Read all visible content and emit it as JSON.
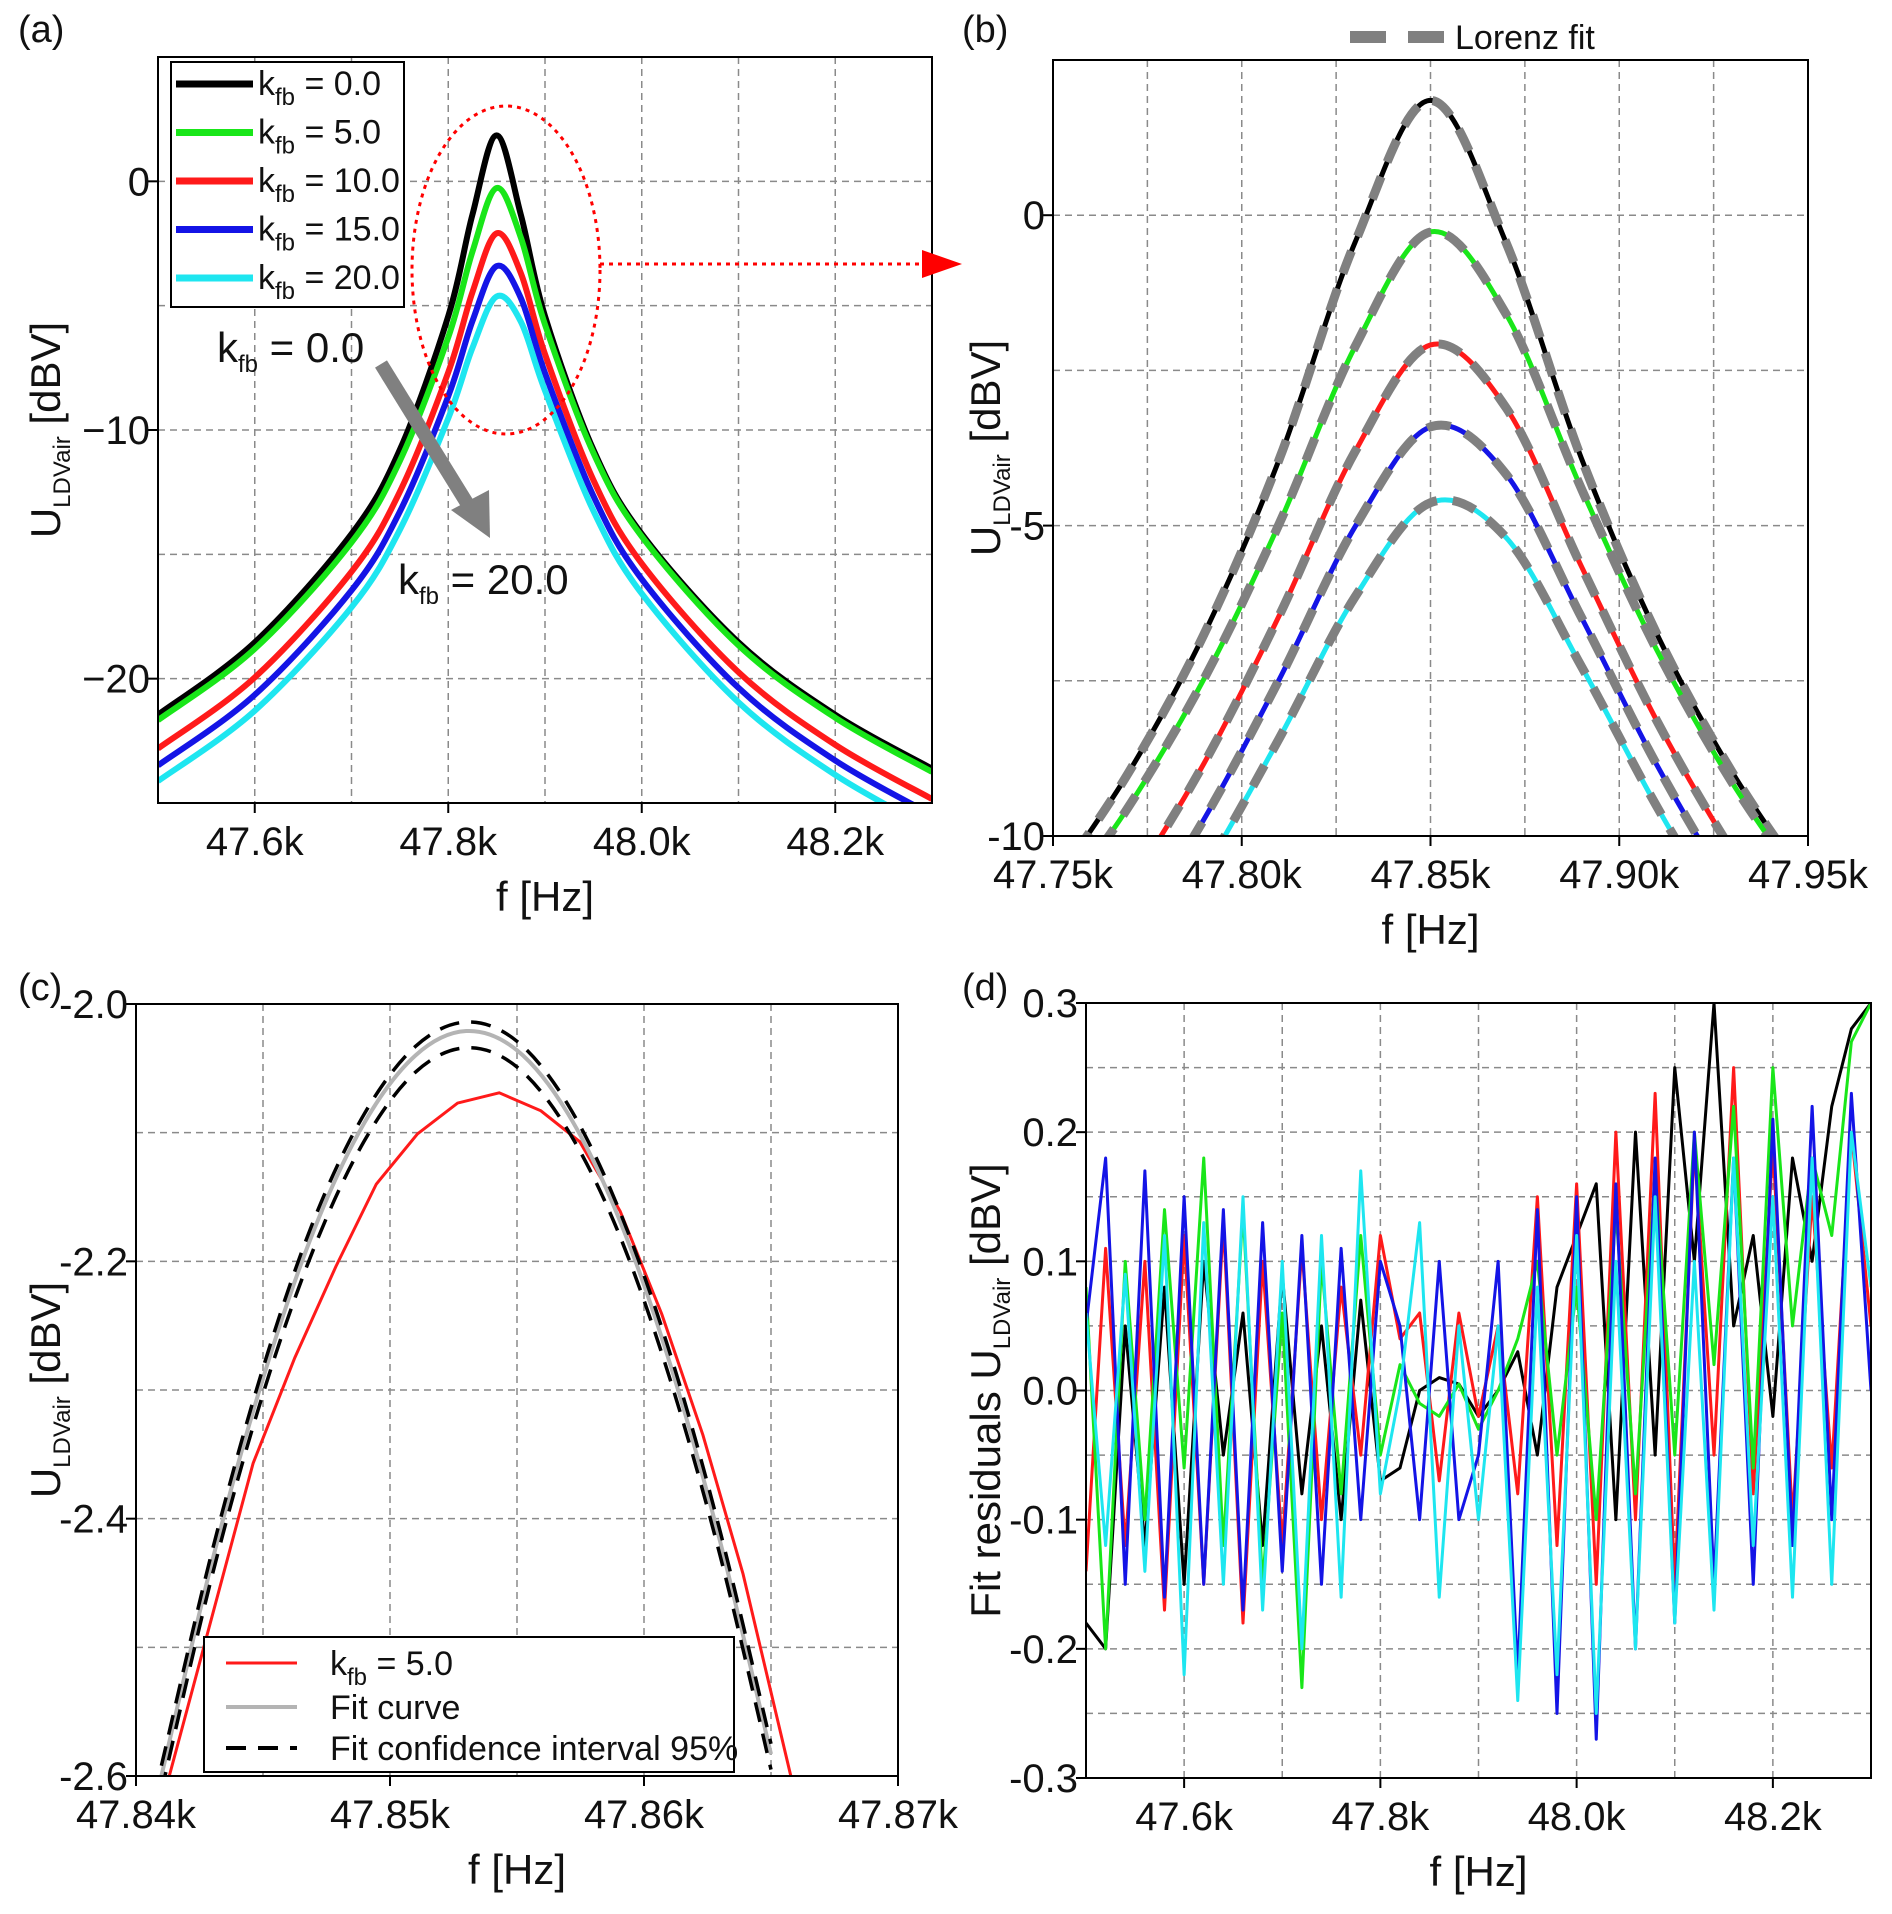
{
  "colors": {
    "k0": "#000000",
    "k5": "#19e619",
    "k10": "#ff1a1a",
    "k15": "#1414e6",
    "k20": "#1ee6f0",
    "fit": "#808080",
    "fit_c": "#b4b4b4",
    "ci": "#000000",
    "annotation": "#ff0000",
    "arrow": "#808080"
  },
  "chart_data": [
    {
      "panel_label": "(a)",
      "type": "line",
      "xlabel": "f [Hz]",
      "ylabel": {
        "main": "U",
        "sub": "LDVair",
        "rest": " [dBV]"
      },
      "xlim": [
        47500,
        48300
      ],
      "ylim": [
        -25,
        5
      ],
      "xticks": [
        47600,
        47800,
        48000,
        48200
      ],
      "xtick_labels": [
        "47.6k",
        "47.8k",
        "48.0k",
        "48.2k"
      ],
      "yticks": [
        0,
        -10,
        -20
      ],
      "ytick_labels": [
        "0",
        "−10",
        "−20"
      ],
      "grid_x": [
        47600,
        47700,
        47800,
        47900,
        48000,
        48100,
        48200
      ],
      "grid_y": [
        0,
        -5,
        -10,
        -15,
        -20
      ],
      "grid": true,
      "legend_position": "top-left",
      "x": [
        47500,
        47600,
        47700,
        47750,
        47800,
        47825,
        47850,
        47875,
        47900,
        47950,
        48000,
        48100,
        48200,
        48300
      ],
      "series": [
        {
          "name": "k_fb = 0.0",
          "legend": {
            "main": "k",
            "sub": "fb",
            "rest": " = 0.0"
          },
          "color_key": "k0",
          "values": [
            -21.45,
            -18.54,
            -14.18,
            -10.79,
            -5.42,
            -1.34,
            1.85,
            -1.34,
            -5.42,
            -10.79,
            -14.18,
            -18.54,
            -21.45,
            -23.62
          ]
        },
        {
          "name": "k_fb = 5.0",
          "legend": {
            "main": "k",
            "sub": "fb",
            "rest": " = 5.0"
          },
          "color_key": "k5",
          "values": [
            -21.67,
            -18.8,
            -14.52,
            -11.24,
            -6.27,
            -2.83,
            -0.27,
            -2.26,
            -5.76,
            -10.92,
            -14.28,
            -18.66,
            -21.57,
            -23.75
          ]
        },
        {
          "name": "k_fb = 10.0",
          "legend": {
            "main": "k",
            "sub": "fb",
            "rest": " = 10.0"
          },
          "color_key": "k10",
          "values": [
            -22.81,
            -19.95,
            -15.7,
            -12.48,
            -7.68,
            -4.46,
            -2.09,
            -3.69,
            -6.95,
            -12.01,
            -15.37,
            -19.74,
            -22.66,
            -24.84
          ]
        },
        {
          "name": "k_fb = 15.0",
          "legend": {
            "main": "k",
            "sub": "fb",
            "rest": " = 15.0"
          },
          "color_key": "k15",
          "values": [
            -23.49,
            -20.65,
            -16.45,
            -13.28,
            -8.64,
            -5.62,
            -3.41,
            -4.69,
            -7.71,
            -12.65,
            -16.0,
            -20.37,
            -23.29,
            -25.48
          ]
        },
        {
          "name": "k_fb = 20.0",
          "legend": {
            "main": "k",
            "sub": "fb",
            "rest": " = 20.0"
          },
          "color_key": "k20",
          "values": [
            -24.12,
            -21.29,
            -17.13,
            -14.01,
            -9.53,
            -6.7,
            -4.63,
            -5.64,
            -8.42,
            -13.25,
            -16.58,
            -20.95,
            -23.87,
            -26.07
          ]
        }
      ],
      "annotations": [
        {
          "main": "k",
          "sub": "fb",
          "rest": " = 0.0"
        },
        {
          "main": "k",
          "sub": "fb",
          "rest": " = 20.0"
        }
      ]
    },
    {
      "panel_label": "(b)",
      "type": "line",
      "xlabel": "f [Hz]",
      "ylabel": {
        "main": "U",
        "sub": "LDVair",
        "rest": " [dBV]"
      },
      "xlim": [
        47750,
        47950
      ],
      "ylim": [
        -10,
        2.5
      ],
      "xticks": [
        47750,
        47800,
        47850,
        47900,
        47950
      ],
      "xtick_labels": [
        "47.75k",
        "47.80k",
        "47.85k",
        "47.90k",
        "47.95k"
      ],
      "yticks": [
        0,
        -5,
        -10
      ],
      "ytick_labels": [
        "0",
        "-5",
        "-10"
      ],
      "grid_x": [
        47775,
        47800,
        47825,
        47850,
        47875,
        47900,
        47925
      ],
      "grid_y": [
        0,
        -2.5,
        -5,
        -7.5
      ],
      "grid": true,
      "legend_position": "top-center",
      "legend": "Lorenz fit",
      "x": [
        47750,
        47770,
        47790,
        47810,
        47830,
        47850,
        47870,
        47890,
        47910,
        47930,
        47950
      ],
      "series": [
        {
          "color_key": "k0",
          "values": [
            -10.79,
            -8.98,
            -6.75,
            -3.92,
            -0.44,
            1.85,
            -0.44,
            -3.92,
            -6.75,
            -8.98,
            -10.79
          ]
        },
        {
          "color_key": "k5",
          "values": [
            -11.24,
            -9.53,
            -7.47,
            -4.96,
            -2.12,
            -0.27,
            -1.59,
            -4.41,
            -7.01,
            -9.15,
            -10.92
          ]
        },
        {
          "color_key": "k10",
          "values": [
            -12.48,
            -10.81,
            -8.83,
            -6.44,
            -3.81,
            -2.09,
            -3.1,
            -5.66,
            -8.15,
            -10.25,
            -12.01
          ]
        },
        {
          "color_key": "k15",
          "values": [
            -13.28,
            -11.65,
            -9.73,
            -7.47,
            -5.02,
            -3.41,
            -4.17,
            -6.48,
            -8.86,
            -10.92,
            -12.65
          ]
        },
        {
          "color_key": "k20",
          "values": [
            -14.01,
            -12.43,
            -10.57,
            -8.42,
            -6.15,
            -4.63,
            -5.19,
            -7.27,
            -9.53,
            -11.54,
            -13.25
          ]
        }
      ]
    },
    {
      "panel_label": "(c)",
      "type": "line",
      "xlabel": "f [Hz]",
      "ylabel": {
        "main": "U",
        "sub": "LDVair",
        "rest": " [dBV]"
      },
      "xlim": [
        47840,
        47870
      ],
      "ylim": [
        -2.6,
        -2.0
      ],
      "xticks": [
        47840,
        47850,
        47860,
        47870
      ],
      "xtick_labels": [
        "47.84k",
        "47.85k",
        "47.86k",
        "47.87k"
      ],
      "yticks": [
        -2.0,
        -2.2,
        -2.4,
        -2.6
      ],
      "ytick_labels": [
        "-2.0",
        "-2.2",
        "-2.4",
        "-2.6"
      ],
      "grid_x": [
        47845,
        47850,
        47855,
        47860,
        47865
      ],
      "grid_y": [
        -2.1,
        -2.2,
        -2.3,
        -2.4,
        -2.5
      ],
      "grid": true,
      "legend_position": "bottom-center",
      "data_series": {
        "legend": {
          "main": "k",
          "sub": "fb",
          "rest": " = 5.0"
        },
        "color_key": "k10",
        "x": [
          47841.31,
          47844.61,
          47846.25,
          47847.87,
          47849.46,
          47851.08,
          47852.66,
          47854.3,
          47855.94,
          47857.47,
          47859.06,
          47860.7,
          47862.32,
          47863.9,
          47865.78
        ],
        "values": [
          -2.6,
          -2.357,
          -2.275,
          -2.204,
          -2.14,
          -2.101,
          -2.077,
          -2.069,
          -2.083,
          -2.107,
          -2.161,
          -2.241,
          -2.335,
          -2.443,
          -2.6
        ]
      },
      "fit_x": [
        47841,
        47843,
        47845,
        47847,
        47849,
        47851,
        47853,
        47855,
        47857,
        47859,
        47861,
        47863,
        47865
      ],
      "fit_series": {
        "legend": "Fit curve",
        "color_key": "fit_c",
        "values": [
          -2.6,
          -2.433,
          -2.291,
          -2.176,
          -2.092,
          -2.04,
          -2.021,
          -2.036,
          -2.085,
          -2.166,
          -2.278,
          -2.418,
          -2.583
        ]
      },
      "ci_series": {
        "legend": "Fit confidence interval 95%",
        "color_key": "ci",
        "upper": [
          -2.592,
          -2.425,
          -2.283,
          -2.168,
          -2.085,
          -2.033,
          -2.014,
          -2.029,
          -2.078,
          -2.159,
          -2.27,
          -2.41,
          -2.575
        ],
        "lower": [
          -2.612,
          -2.444,
          -2.303,
          -2.19,
          -2.106,
          -2.053,
          -2.034,
          -2.049,
          -2.098,
          -2.178,
          -2.29,
          -2.429,
          -2.595
        ]
      }
    },
    {
      "panel_label": "(d)",
      "type": "line",
      "xlabel": "f [Hz]",
      "ylabel": {
        "main": "Fit residuals U",
        "sub": "LDVair",
        "rest": " [dBV]"
      },
      "xlim": [
        47500,
        48300
      ],
      "ylim": [
        -0.3,
        0.3
      ],
      "xticks": [
        47600,
        47800,
        48000,
        48200
      ],
      "xtick_labels": [
        "47.6k",
        "47.8k",
        "48.0k",
        "48.2k"
      ],
      "yticks": [
        0.3,
        0.2,
        0.1,
        0.0,
        -0.1,
        -0.2,
        -0.3
      ],
      "ytick_labels": [
        "0.3",
        "0.2",
        "0.1",
        "0.0",
        "-0.1",
        "-0.2",
        "-0.3"
      ],
      "grid_x": [
        47600,
        47700,
        47800,
        47900,
        48000,
        48100,
        48200
      ],
      "grid_y": [
        0.25,
        0.2,
        0.15,
        0.1,
        0.05,
        0,
        -0.05,
        -0.1,
        -0.15,
        -0.2,
        -0.25
      ],
      "grid": true,
      "x_start": 47500,
      "x_step": 20,
      "series": [
        {
          "color_key": "k0",
          "values": [
            -0.18,
            -0.2,
            0.05,
            -0.12,
            0.08,
            -0.15,
            0.1,
            -0.05,
            0.06,
            -0.12,
            0.09,
            -0.08,
            0.05,
            -0.1,
            0.07,
            -0.07,
            -0.06,
            0.0,
            0.01,
            0.005,
            -0.02,
            0.0,
            0.03,
            -0.05,
            0.08,
            0.12,
            0.16,
            -0.1,
            0.2,
            -0.05,
            0.25,
            0.1,
            0.3,
            0.05,
            0.12,
            -0.02,
            0.18,
            0.1,
            0.22,
            0.28,
            0.3
          ]
        },
        {
          "color_key": "k10",
          "values": [
            -0.14,
            0.11,
            -0.12,
            0.1,
            -0.17,
            0.12,
            -0.15,
            0.13,
            -0.18,
            0.1,
            -0.12,
            0.11,
            -0.1,
            0.08,
            -0.05,
            0.12,
            0.04,
            0.06,
            -0.07,
            0.06,
            -0.02,
            0.05,
            -0.08,
            0.15,
            -0.12,
            0.16,
            -0.15,
            0.2,
            -0.1,
            0.23,
            -0.15,
            0.19,
            -0.05,
            0.25,
            -0.08,
            0.19,
            -0.1,
            0.15,
            -0.06,
            0.2,
            0.05
          ]
        },
        {
          "color_key": "k5",
          "values": [
            0.08,
            -0.2,
            0.1,
            -0.1,
            0.14,
            -0.06,
            0.18,
            -0.12,
            0.14,
            -0.15,
            0.06,
            -0.23,
            0.1,
            -0.08,
            0.12,
            -0.05,
            0.02,
            -0.01,
            -0.02,
            0.005,
            -0.03,
            0.0,
            0.04,
            0.1,
            -0.05,
            0.08,
            -0.1,
            0.14,
            -0.08,
            0.17,
            -0.05,
            0.2,
            0.02,
            0.22,
            -0.06,
            0.25,
            0.05,
            0.18,
            0.12,
            0.27,
            0.3
          ]
        },
        {
          "color_key": "k15",
          "values": [
            0.05,
            0.18,
            -0.15,
            0.17,
            -0.16,
            0.15,
            -0.15,
            0.14,
            -0.17,
            0.13,
            -0.14,
            0.12,
            -0.15,
            0.11,
            -0.1,
            0.1,
            0.05,
            -0.1,
            0.1,
            -0.1,
            -0.05,
            0.1,
            -0.22,
            0.14,
            -0.25,
            0.15,
            -0.27,
            0.16,
            -0.2,
            0.18,
            -0.18,
            0.2,
            -0.15,
            0.18,
            -0.15,
            0.21,
            -0.12,
            0.22,
            -0.1,
            0.23,
            0.0
          ]
        },
        {
          "color_key": "k20",
          "values": [
            0.06,
            -0.12,
            0.09,
            -0.14,
            0.12,
            -0.22,
            0.13,
            -0.15,
            0.15,
            -0.17,
            0.1,
            -0.2,
            0.12,
            -0.16,
            0.17,
            -0.08,
            0.0,
            0.13,
            -0.16,
            0.05,
            -0.1,
            0.05,
            -0.24,
            0.08,
            -0.22,
            0.12,
            -0.25,
            0.1,
            -0.2,
            0.15,
            -0.18,
            0.1,
            -0.17,
            0.18,
            -0.12,
            0.15,
            -0.16,
            0.18,
            -0.15,
            0.2,
            0.08
          ]
        }
      ]
    }
  ]
}
